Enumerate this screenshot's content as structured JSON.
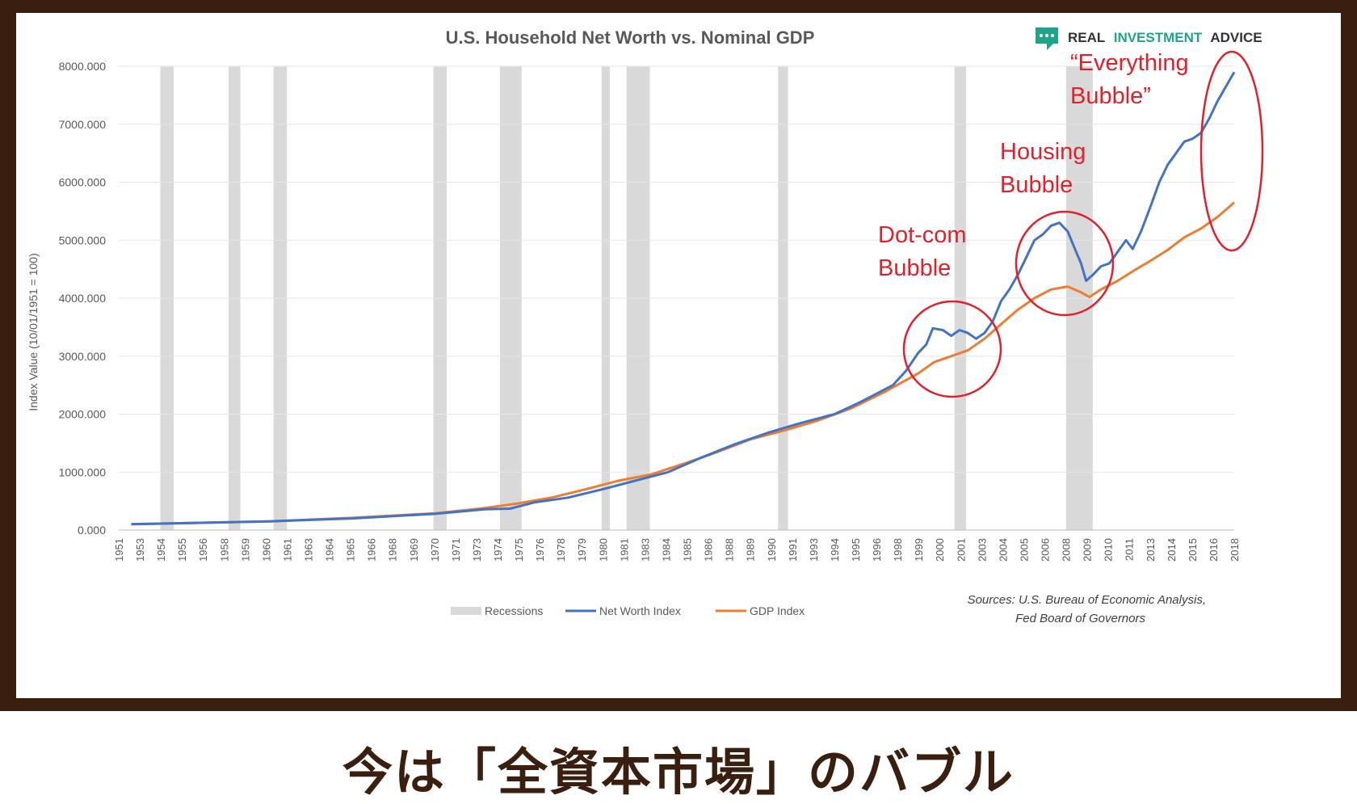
{
  "caption": "今は「全資本市場」のバブル",
  "brand": {
    "real": "REAL",
    "investment": "INVESTMENT",
    "advice": "ADVICE",
    "icon": "chat-bubble-icon"
  },
  "colors": {
    "net_worth": "#4472c4",
    "gdp": "#ed7d31",
    "recession": "#d9d9d9",
    "annotation": "#e0202a",
    "frame": "#3b1f0e",
    "brand_teal": "#1fa38a"
  },
  "annotations": [
    {
      "line1": "Dot-com",
      "line2": "Bubble"
    },
    {
      "line1": "Housing",
      "line2": "Bubble"
    },
    {
      "line1": "“Everything",
      "line2": "Bubble”"
    }
  ],
  "sources": {
    "line1": "Sources: U.S. Bureau of Economic Analysis,",
    "line2": "Fed Board of Governors"
  },
  "chart_data": {
    "type": "line",
    "title": "U.S. Household Net Worth vs. Nominal GDP",
    "xlabel": "",
    "ylabel": "Index Value (10/01/1951 = 100)",
    "xlim": [
      1951,
      2018
    ],
    "ylim": [
      0,
      8000
    ],
    "yticks": [
      "0.000",
      "1000.000",
      "2000.000",
      "3000.000",
      "4000.000",
      "5000.000",
      "6000.000",
      "7000.000",
      "8000.000"
    ],
    "xticks": [
      "1951",
      "1953",
      "1954",
      "1955",
      "1956",
      "1958",
      "1959",
      "1960",
      "1961",
      "1963",
      "1964",
      "1965",
      "1966",
      "1968",
      "1969",
      "1970",
      "1971",
      "1973",
      "1974",
      "1975",
      "1976",
      "1978",
      "1979",
      "1980",
      "1981",
      "1983",
      "1984",
      "1985",
      "1986",
      "1988",
      "1989",
      "1990",
      "1991",
      "1993",
      "1994",
      "1995",
      "1996",
      "1998",
      "1999",
      "2000",
      "2001",
      "2003",
      "2004",
      "2005",
      "2006",
      "2008",
      "2009",
      "2010",
      "2011",
      "2013",
      "2014",
      "2015",
      "2016",
      "2018"
    ],
    "grid": true,
    "legend_position": "bottom",
    "legend": [
      "Recessions",
      "Net Worth Index",
      "GDP Index"
    ],
    "recessions": [
      [
        1953.5,
        1954.3
      ],
      [
        1957.6,
        1958.3
      ],
      [
        1960.3,
        1961.1
      ],
      [
        1969.9,
        1970.7
      ],
      [
        1973.9,
        1975.2
      ],
      [
        1980.0,
        1980.5
      ],
      [
        1981.5,
        1982.9
      ],
      [
        1990.6,
        1991.2
      ],
      [
        2001.2,
        2001.9
      ],
      [
        2007.9,
        2009.5
      ]
    ],
    "series": [
      {
        "name": "Net Worth Index",
        "points": [
          [
            1951.75,
            100
          ],
          [
            1955,
            120
          ],
          [
            1960,
            150
          ],
          [
            1965,
            200
          ],
          [
            1970,
            280
          ],
          [
            1973,
            360
          ],
          [
            1974.5,
            370
          ],
          [
            1976,
            480
          ],
          [
            1978,
            560
          ],
          [
            1980,
            700
          ],
          [
            1982,
            850
          ],
          [
            1984,
            1000
          ],
          [
            1986,
            1250
          ],
          [
            1988,
            1480
          ],
          [
            1990,
            1680
          ],
          [
            1992,
            1850
          ],
          [
            1994,
            2000
          ],
          [
            1995.5,
            2200
          ],
          [
            1996.5,
            2350
          ],
          [
            1997.5,
            2500
          ],
          [
            1998.3,
            2750
          ],
          [
            1999,
            3050
          ],
          [
            1999.5,
            3200
          ],
          [
            1999.9,
            3480
          ],
          [
            2000.5,
            3450
          ],
          [
            2001,
            3350
          ],
          [
            2001.5,
            3450
          ],
          [
            2002,
            3400
          ],
          [
            2002.5,
            3300
          ],
          [
            2003,
            3400
          ],
          [
            2003.5,
            3600
          ],
          [
            2004,
            3950
          ],
          [
            2004.5,
            4150
          ],
          [
            2005,
            4400
          ],
          [
            2005.5,
            4700
          ],
          [
            2006,
            5000
          ],
          [
            2006.5,
            5100
          ],
          [
            2007,
            5250
          ],
          [
            2007.5,
            5300
          ],
          [
            2008,
            5150
          ],
          [
            2008.5,
            4800
          ],
          [
            2008.8,
            4600
          ],
          [
            2009.1,
            4300
          ],
          [
            2009.5,
            4400
          ],
          [
            2010,
            4550
          ],
          [
            2010.5,
            4600
          ],
          [
            2011,
            4800
          ],
          [
            2011.5,
            5000
          ],
          [
            2011.9,
            4850
          ],
          [
            2012.4,
            5150
          ],
          [
            2013,
            5600
          ],
          [
            2013.5,
            6000
          ],
          [
            2014,
            6300
          ],
          [
            2014.5,
            6500
          ],
          [
            2015,
            6700
          ],
          [
            2015.5,
            6750
          ],
          [
            2016,
            6850
          ],
          [
            2016.5,
            7100
          ],
          [
            2017,
            7400
          ],
          [
            2017.5,
            7650
          ],
          [
            2018,
            7900
          ]
        ]
      },
      {
        "name": "GDP Index",
        "points": [
          [
            1951.75,
            100
          ],
          [
            1955,
            120
          ],
          [
            1960,
            150
          ],
          [
            1965,
            210
          ],
          [
            1970,
            290
          ],
          [
            1973,
            380
          ],
          [
            1975,
            460
          ],
          [
            1977,
            560
          ],
          [
            1979,
            700
          ],
          [
            1981,
            850
          ],
          [
            1983,
            960
          ],
          [
            1985,
            1150
          ],
          [
            1987,
            1350
          ],
          [
            1989,
            1570
          ],
          [
            1991,
            1720
          ],
          [
            1993,
            1890
          ],
          [
            1995,
            2100
          ],
          [
            1997,
            2380
          ],
          [
            1999,
            2700
          ],
          [
            2000,
            2900
          ],
          [
            2001,
            3000
          ],
          [
            2002,
            3100
          ],
          [
            2003,
            3300
          ],
          [
            2004,
            3550
          ],
          [
            2005,
            3800
          ],
          [
            2006,
            4000
          ],
          [
            2007,
            4150
          ],
          [
            2008,
            4200
          ],
          [
            2008.8,
            4100
          ],
          [
            2009.3,
            4020
          ],
          [
            2010,
            4150
          ],
          [
            2011,
            4300
          ],
          [
            2012,
            4480
          ],
          [
            2013,
            4650
          ],
          [
            2014,
            4830
          ],
          [
            2015,
            5050
          ],
          [
            2016,
            5200
          ],
          [
            2017,
            5400
          ],
          [
            2018,
            5650
          ]
        ]
      }
    ]
  }
}
